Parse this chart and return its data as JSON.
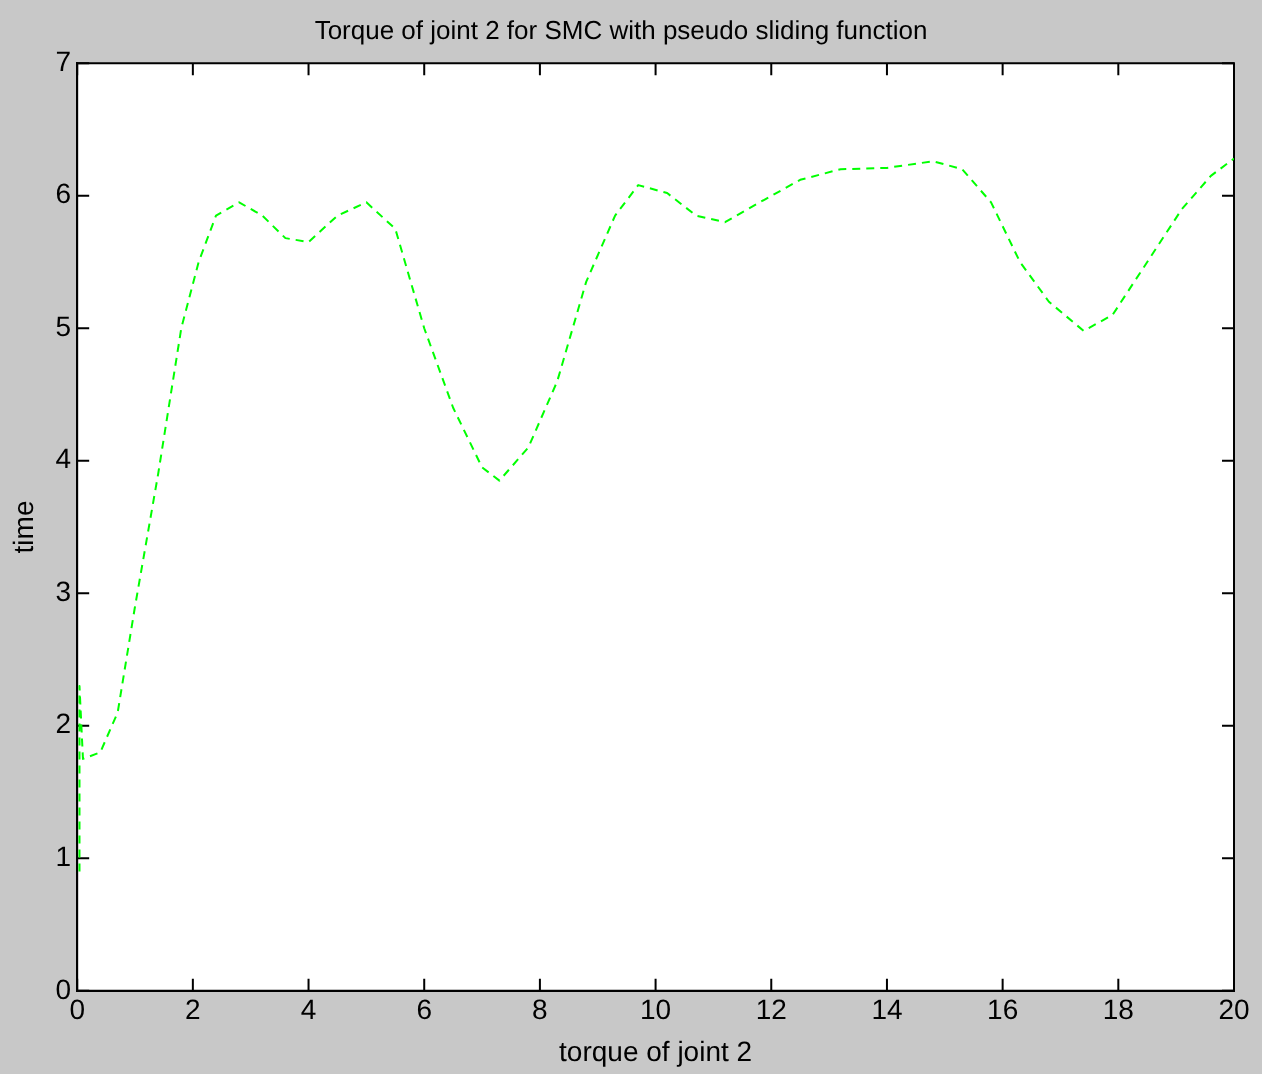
{
  "chart_data": {
    "type": "line",
    "title": "Torque of joint 2 for SMC with pseudo sliding function",
    "xlabel": "torque of joint 2",
    "ylabel": "time",
    "xlim": [
      0,
      20
    ],
    "ylim": [
      0,
      7
    ],
    "xticks": [
      0,
      2,
      4,
      6,
      8,
      10,
      12,
      14,
      16,
      18,
      20
    ],
    "yticks": [
      0,
      1,
      2,
      3,
      4,
      5,
      6,
      7
    ],
    "grid": false,
    "legend": false,
    "marker": "none",
    "line_style": "dashed",
    "series": [
      {
        "color": "#00ff00",
        "x": [
          0.04,
          0.04,
          0.1,
          0.4,
          0.7,
          1.0,
          1.4,
          1.8,
          2.1,
          2.4,
          2.8,
          3.2,
          3.6,
          4.0,
          4.5,
          5.0,
          5.5,
          6.0,
          6.5,
          7.0,
          7.3,
          7.8,
          8.3,
          8.8,
          9.3,
          9.7,
          10.2,
          10.7,
          11.2,
          11.8,
          12.5,
          13.2,
          14.0,
          14.8,
          15.3,
          15.8,
          16.3,
          16.8,
          17.4,
          17.9,
          18.5,
          19.1,
          19.6,
          20
        ],
        "values": [
          0.9,
          2.3,
          1.75,
          1.8,
          2.1,
          2.9,
          3.9,
          5.0,
          5.5,
          5.85,
          5.95,
          5.85,
          5.68,
          5.65,
          5.85,
          5.95,
          5.75,
          5.0,
          4.4,
          3.95,
          3.85,
          4.1,
          4.6,
          5.35,
          5.85,
          6.08,
          6.02,
          5.85,
          5.8,
          5.95,
          6.12,
          6.2,
          6.21,
          6.26,
          6.2,
          5.95,
          5.5,
          5.2,
          4.98,
          5.1,
          5.5,
          5.9,
          6.15,
          6.28
        ]
      }
    ]
  }
}
